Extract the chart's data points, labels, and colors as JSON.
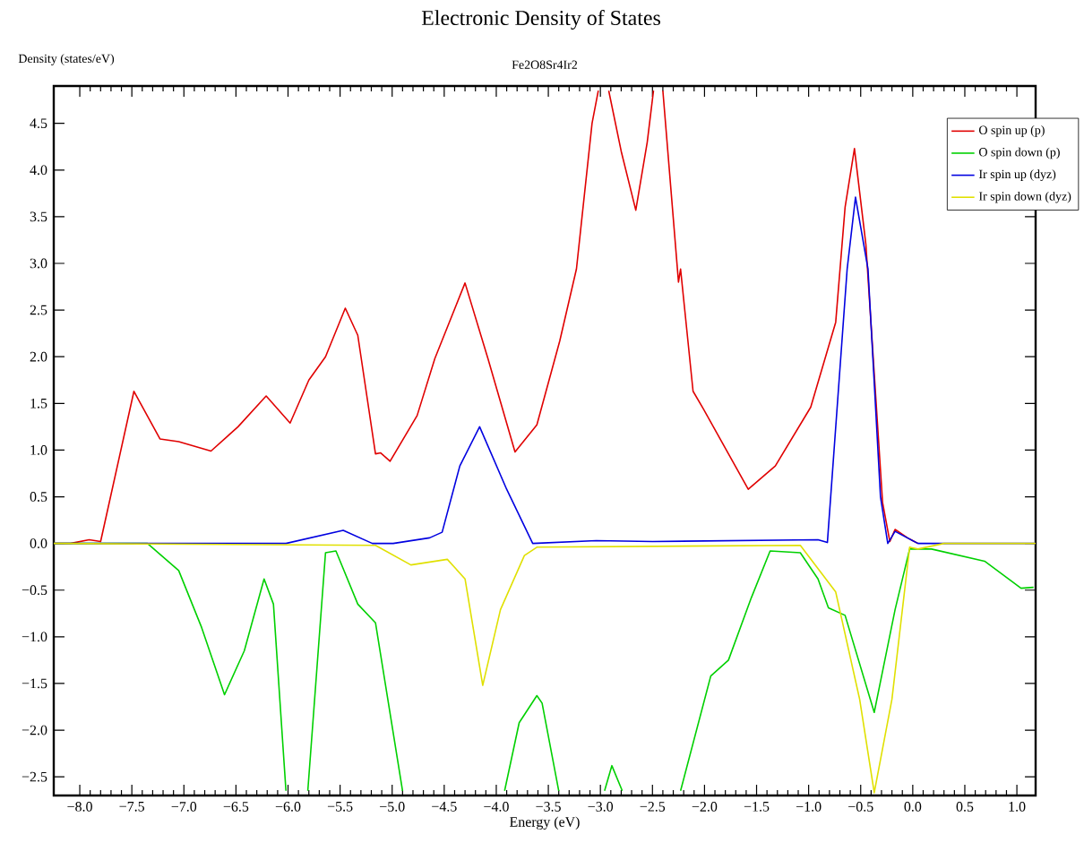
{
  "chart_data": {
    "type": "line",
    "title": "Electronic Density of States",
    "subtitle": "Fe2O8Sr4Ir2",
    "xlabel": "Energy (eV)",
    "ylabel": "Density (states/eV)",
    "xlim": [
      -8.25,
      1.18
    ],
    "ylim": [
      -2.7,
      4.9
    ],
    "xticks": [
      {
        "value": -8.0,
        "label": "−8.0"
      },
      {
        "value": -7.5,
        "label": "−7.5"
      },
      {
        "value": -7.0,
        "label": "−7.0"
      },
      {
        "value": -6.5,
        "label": "−6.5"
      },
      {
        "value": -6.0,
        "label": "−6.0"
      },
      {
        "value": -5.5,
        "label": "−5.5"
      },
      {
        "value": -5.0,
        "label": "−5.0"
      },
      {
        "value": -4.5,
        "label": "−4.5"
      },
      {
        "value": -4.0,
        "label": "−4.0"
      },
      {
        "value": -3.5,
        "label": "−3.5"
      },
      {
        "value": -3.0,
        "label": "−3.0"
      },
      {
        "value": -2.5,
        "label": "−2.5"
      },
      {
        "value": -2.0,
        "label": "−2.0"
      },
      {
        "value": -1.5,
        "label": "−1.5"
      },
      {
        "value": -1.0,
        "label": "−1.0"
      },
      {
        "value": -0.5,
        "label": "−0.5"
      },
      {
        "value": 0.0,
        "label": "0.0"
      },
      {
        "value": 0.5,
        "label": "0.5"
      },
      {
        "value": 1.0,
        "label": "1.0"
      }
    ],
    "yticks": [
      {
        "value": -2.5,
        "label": "−2.5"
      },
      {
        "value": -2.0,
        "label": "−2.0"
      },
      {
        "value": -1.5,
        "label": "−1.5"
      },
      {
        "value": -1.0,
        "label": "−1.0"
      },
      {
        "value": -0.5,
        "label": "−0.5"
      },
      {
        "value": 0.0,
        "label": "0.0"
      },
      {
        "value": 0.5,
        "label": "0.5"
      },
      {
        "value": 1.0,
        "label": "1.0"
      },
      {
        "value": 1.5,
        "label": "1.5"
      },
      {
        "value": 2.0,
        "label": "2.0"
      },
      {
        "value": 2.5,
        "label": "2.5"
      },
      {
        "value": 3.0,
        "label": "3.0"
      },
      {
        "value": 3.5,
        "label": "3.5"
      },
      {
        "value": 4.0,
        "label": "4.0"
      },
      {
        "value": 4.5,
        "label": "4.5"
      }
    ],
    "legend": "top right",
    "marker": "none",
    "line_style": "solid",
    "series": [
      {
        "name": "O spin up (p)",
        "color": "#e00000",
        "x": [
          -8.25,
          -8.09,
          -7.91,
          -7.8,
          -7.48,
          -7.23,
          -7.05,
          -6.74,
          -6.48,
          -6.21,
          -5.98,
          -5.8,
          -5.64,
          -5.45,
          -5.33,
          -5.16,
          -5.11,
          -5.02,
          -4.76,
          -4.59,
          -4.3,
          -4.08,
          -3.82,
          -3.61,
          -3.39,
          -3.23,
          -3.08,
          -3.02,
          -2.97,
          -2.92,
          -2.8,
          -2.66,
          -2.55,
          -2.49,
          -2.45,
          -2.4,
          -2.25,
          -2.23,
          -2.11,
          -2.01,
          -1.58,
          -1.32,
          -0.98,
          -0.74,
          -0.65,
          -0.56,
          -0.45,
          -0.29,
          -0.22,
          -0.17,
          -0.05,
          0.05
        ],
        "values": [
          0.0,
          0.0,
          0.04,
          0.02,
          1.63,
          1.12,
          1.09,
          0.99,
          1.25,
          1.58,
          1.29,
          1.75,
          2.0,
          2.52,
          2.23,
          0.96,
          0.97,
          0.88,
          1.37,
          1.98,
          2.79,
          1.98,
          0.98,
          1.27,
          2.17,
          2.94,
          4.5,
          4.85,
          null,
          4.85,
          4.2,
          3.57,
          4.3,
          4.85,
          null,
          4.85,
          2.8,
          2.94,
          1.63,
          1.44,
          0.58,
          0.83,
          1.46,
          2.37,
          3.6,
          4.23,
          3.2,
          0.44,
          0.02,
          0.15,
          0.06,
          0.0
        ]
      },
      {
        "name": "O spin down (p)",
        "color": "#00d000",
        "x": [
          -8.25,
          -7.35,
          -7.05,
          -6.83,
          -6.61,
          -6.42,
          -6.23,
          -6.14,
          -6.02,
          -5.92,
          -5.81,
          -5.64,
          -5.54,
          -5.33,
          -5.16,
          -4.9,
          -4.4,
          -3.92,
          -3.78,
          -3.61,
          -3.56,
          -3.4,
          -3.2,
          -2.96,
          -2.89,
          -2.79,
          -2.5,
          -2.23,
          -1.94,
          -1.77,
          -1.55,
          -1.37,
          -1.08,
          -0.91,
          -0.81,
          -0.65,
          -0.37,
          -0.17,
          -0.03,
          0.05,
          0.18,
          0.69,
          1.04,
          1.16
        ],
        "values": [
          0.0,
          0.0,
          -0.29,
          -0.9,
          -1.62,
          -1.15,
          -0.38,
          -0.65,
          -2.65,
          null,
          -2.65,
          -0.1,
          -0.08,
          -0.65,
          -0.85,
          -2.65,
          null,
          -2.65,
          -1.92,
          -1.63,
          -1.71,
          -2.65,
          null,
          -2.65,
          -2.38,
          -2.65,
          null,
          -2.65,
          -1.42,
          -1.25,
          -0.58,
          -0.08,
          -0.1,
          -0.38,
          -0.69,
          -0.77,
          -1.81,
          -0.71,
          -0.06,
          -0.06,
          -0.06,
          -0.19,
          -0.48,
          -0.47
        ]
      },
      {
        "name": "Ir spin up (dyz)",
        "color": "#0000e0",
        "x": [
          -8.25,
          -6.02,
          -5.47,
          -5.19,
          -4.99,
          -4.64,
          -4.52,
          -4.35,
          -4.16,
          -3.9,
          -3.65,
          -3.04,
          -2.5,
          -0.91,
          -0.82,
          -0.63,
          -0.55,
          -0.43,
          -0.31,
          -0.24,
          -0.17,
          0.05,
          1.18
        ],
        "values": [
          0.0,
          0.0,
          0.14,
          0.0,
          0.0,
          0.06,
          0.12,
          0.83,
          1.25,
          0.58,
          0.0,
          0.03,
          0.02,
          0.04,
          0.01,
          2.94,
          3.71,
          2.94,
          0.5,
          0.0,
          0.13,
          0.0,
          0.0
        ]
      },
      {
        "name": "Ir spin down (dyz)",
        "color": "#e0e000",
        "x": [
          -8.25,
          -5.16,
          -4.82,
          -4.47,
          -4.3,
          -4.13,
          -3.96,
          -3.73,
          -3.61,
          -1.08,
          -0.74,
          -0.51,
          -0.37,
          -0.2,
          -0.03,
          0.05,
          0.3,
          1.18
        ],
        "values": [
          0.0,
          -0.02,
          -0.23,
          -0.17,
          -0.38,
          -1.52,
          -0.71,
          -0.13,
          -0.04,
          -0.02,
          -0.52,
          -1.67,
          -2.67,
          -1.67,
          -0.04,
          -0.06,
          0.0,
          0.0
        ]
      }
    ]
  }
}
